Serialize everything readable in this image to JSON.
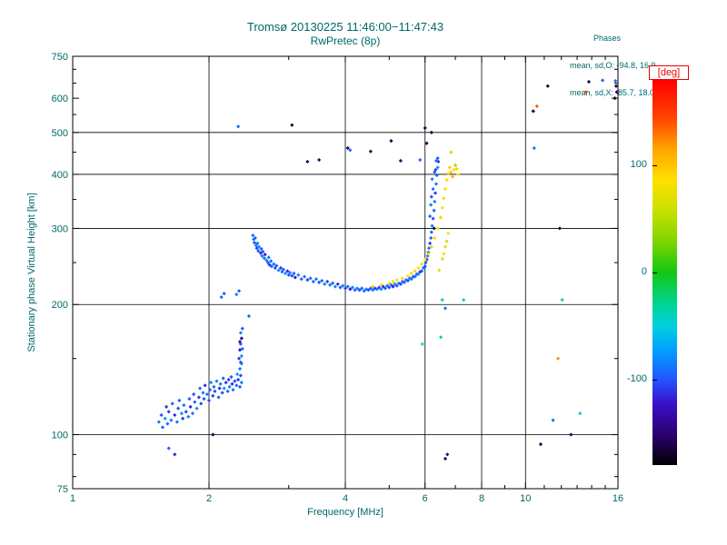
{
  "title": {
    "line1": "Tromsø 20130225 11:46:00−11:47:43",
    "line2": "RwPretec (8p)"
  },
  "stats": {
    "header": "Phases",
    "o_line": "mean, sd,O: -94.8, 16.9",
    "x_line": "mean, sd,X:  85.7, 18.0"
  },
  "colors": {
    "text": "#006868",
    "axis": "#000000",
    "deg_label": "#ee0000",
    "background": "#ffffff"
  },
  "colorbar": {
    "label": "[deg]",
    "min": -180,
    "max": 180,
    "ticks": [
      [
        "100",
        100
      ],
      [
        "0",
        0
      ],
      [
        "-100",
        -100
      ]
    ],
    "stops": [
      [
        0.0,
        "#000000"
      ],
      [
        0.08,
        "#2d0070"
      ],
      [
        0.16,
        "#3a10c8"
      ],
      [
        0.222,
        "#2255ff"
      ],
      [
        0.3,
        "#00a2ff"
      ],
      [
        0.36,
        "#00cfe0"
      ],
      [
        0.42,
        "#00d490"
      ],
      [
        0.5,
        "#12c812"
      ],
      [
        0.58,
        "#7fd400"
      ],
      [
        0.66,
        "#c8e000"
      ],
      [
        0.74,
        "#ffe000"
      ],
      [
        0.82,
        "#ffa500"
      ],
      [
        0.9,
        "#ff4500"
      ],
      [
        1.0,
        "#ff0000"
      ]
    ]
  },
  "chart_data": {
    "type": "scatter",
    "title": "Tromsø 20130225 11:46:00−11:47:43",
    "subtitle": "RwPretec (8p)",
    "xlabel": "Frequency [MHz]",
    "ylabel": "Stationary phase Virtual Height [km]",
    "xscale": "log",
    "yscale": "log",
    "xlim": [
      1,
      16
    ],
    "ylim": [
      75,
      750
    ],
    "color_value": "phase [deg]",
    "color_range": [
      -180,
      180
    ],
    "xticks": {
      "labeled": [
        [
          1,
          "1"
        ],
        [
          2,
          "2"
        ],
        [
          4,
          "4"
        ],
        [
          6,
          "6"
        ],
        [
          8,
          "8"
        ],
        [
          10,
          "10"
        ],
        [
          16,
          "16"
        ]
      ],
      "minor": [
        3,
        5,
        7,
        9,
        11,
        12,
        13,
        14,
        15
      ]
    },
    "yticks": {
      "labeled": [
        [
          75,
          "75"
        ],
        [
          100,
          "100"
        ],
        [
          200,
          "200"
        ],
        [
          300,
          "300"
        ],
        [
          400,
          "400"
        ],
        [
          500,
          "500"
        ],
        [
          600,
          "600"
        ],
        [
          750,
          "750"
        ]
      ],
      "minor": [
        80,
        90,
        150,
        250,
        350,
        450,
        550,
        650,
        700
      ]
    },
    "xgrid": [
      2,
      4,
      6,
      8,
      10
    ],
    "ygrid": [
      100,
      200,
      300,
      400,
      500
    ],
    "points": [
      [
        1.55,
        107,
        -88
      ],
      [
        1.57,
        111,
        -102
      ],
      [
        1.58,
        104,
        -95
      ],
      [
        1.6,
        109,
        -78
      ],
      [
        1.61,
        116,
        -110
      ],
      [
        1.62,
        106,
        -92
      ],
      [
        1.63,
        113,
        -105
      ],
      [
        1.65,
        108,
        -85
      ],
      [
        1.66,
        118,
        -98
      ],
      [
        1.68,
        111,
        -115
      ],
      [
        1.7,
        107,
        -88
      ],
      [
        1.71,
        115,
        -102
      ],
      [
        1.72,
        120,
        -95
      ],
      [
        1.74,
        112,
        -78
      ],
      [
        1.75,
        109,
        -110
      ],
      [
        1.76,
        117,
        -92
      ],
      [
        1.78,
        113,
        -105
      ],
      [
        1.8,
        110,
        -85
      ],
      [
        1.81,
        121,
        -98
      ],
      [
        1.82,
        116,
        -115
      ],
      [
        1.84,
        112,
        -88
      ],
      [
        1.85,
        124,
        -102
      ],
      [
        1.86,
        119,
        -95
      ],
      [
        1.88,
        115,
        -78
      ],
      [
        1.9,
        122,
        -110
      ],
      [
        1.91,
        128,
        -92
      ],
      [
        1.92,
        118,
        -105
      ],
      [
        1.94,
        125,
        -85
      ],
      [
        1.95,
        121,
        -98
      ],
      [
        1.96,
        130,
        -115
      ],
      [
        1.98,
        124,
        -88
      ],
      [
        2.0,
        120,
        -102
      ],
      [
        2.01,
        127,
        -95
      ],
      [
        2.02,
        132,
        -78
      ],
      [
        2.04,
        123,
        -110
      ],
      [
        2.05,
        129,
        -92
      ],
      [
        2.06,
        126,
        -105
      ],
      [
        2.08,
        133,
        -85
      ],
      [
        2.1,
        122,
        -98
      ],
      [
        2.11,
        128,
        -115
      ],
      [
        2.12,
        131,
        -88
      ],
      [
        2.14,
        125,
        -102
      ],
      [
        2.15,
        135,
        -95
      ],
      [
        2.16,
        128,
        -78
      ],
      [
        2.18,
        132,
        -110
      ],
      [
        2.2,
        126,
        -92
      ],
      [
        2.21,
        134,
        -105
      ],
      [
        2.22,
        129,
        -85
      ],
      [
        2.24,
        136,
        -98
      ],
      [
        2.25,
        131,
        -115
      ],
      [
        2.26,
        127,
        -88
      ],
      [
        2.28,
        133,
        -102
      ],
      [
        2.3,
        130,
        -95
      ],
      [
        2.31,
        138,
        -78
      ],
      [
        2.32,
        134,
        -110
      ],
      [
        2.34,
        129,
        -92
      ],
      [
        2.35,
        137,
        -105
      ],
      [
        2.36,
        132,
        -85
      ],
      [
        1.63,
        93,
        -96
      ],
      [
        1.68,
        90,
        -118
      ],
      [
        2.04,
        100,
        -160
      ],
      [
        2.34,
        142,
        -90
      ],
      [
        2.35,
        147,
        -105
      ],
      [
        2.36,
        152,
        -80
      ],
      [
        2.34,
        157,
        -120
      ],
      [
        2.35,
        162,
        -95
      ],
      [
        2.36,
        167,
        -150
      ],
      [
        2.35,
        172,
        -85
      ],
      [
        2.37,
        176,
        -100
      ],
      [
        2.33,
        150,
        -110
      ],
      [
        2.37,
        158,
        -92
      ],
      [
        2.36,
        146,
        -88
      ],
      [
        2.34,
        164,
        -130
      ],
      [
        2.13,
        208,
        -90
      ],
      [
        2.16,
        212,
        -100
      ],
      [
        2.3,
        211,
        -85
      ],
      [
        2.33,
        215,
        -95
      ],
      [
        2.5,
        289,
        -92
      ],
      [
        2.51,
        283,
        -88
      ],
      [
        2.52,
        278,
        -101
      ],
      [
        2.53,
        285,
        -95
      ],
      [
        2.54,
        274,
        -84
      ],
      [
        2.55,
        270,
        -108
      ],
      [
        2.56,
        277,
        -90
      ],
      [
        2.57,
        266,
        -97
      ],
      [
        2.58,
        272,
        -79
      ],
      [
        2.6,
        263,
        -112
      ],
      [
        2.61,
        269,
        -99
      ],
      [
        2.62,
        259,
        -86
      ],
      [
        2.63,
        265,
        -104
      ],
      [
        2.65,
        256,
        -93
      ],
      [
        2.66,
        261,
        -120
      ],
      [
        2.68,
        253,
        -82
      ],
      [
        2.7,
        250,
        -96
      ],
      [
        2.71,
        257,
        -89
      ],
      [
        2.72,
        247,
        -107
      ],
      [
        2.74,
        252,
        -94
      ],
      [
        2.75,
        245,
        -92
      ],
      [
        2.78,
        248,
        -88
      ],
      [
        2.8,
        243,
        -101
      ],
      [
        2.82,
        246,
        -95
      ],
      [
        2.85,
        240,
        -84
      ],
      [
        2.88,
        243,
        -108
      ],
      [
        2.9,
        238,
        -90
      ],
      [
        2.92,
        241,
        -97
      ],
      [
        2.95,
        236,
        -79
      ],
      [
        2.98,
        239,
        -112
      ],
      [
        3.0,
        234,
        -99
      ],
      [
        3.02,
        237,
        -86
      ],
      [
        3.05,
        233,
        -104
      ],
      [
        3.08,
        236,
        -93
      ],
      [
        3.1,
        231,
        -120
      ],
      [
        3.15,
        234,
        -82
      ],
      [
        3.2,
        229,
        -96
      ],
      [
        3.25,
        232,
        -89
      ],
      [
        3.3,
        228,
        -107
      ],
      [
        3.35,
        230,
        -94
      ],
      [
        3.4,
        226,
        -92
      ],
      [
        3.45,
        229,
        -88
      ],
      [
        3.5,
        225,
        -101
      ],
      [
        3.55,
        227,
        -95
      ],
      [
        3.6,
        223,
        -84
      ],
      [
        3.65,
        226,
        -108
      ],
      [
        3.7,
        222,
        -90
      ],
      [
        3.75,
        224,
        -97
      ],
      [
        3.8,
        220,
        -79
      ],
      [
        3.85,
        223,
        -112
      ],
      [
        3.9,
        219,
        -99
      ],
      [
        3.95,
        221,
        -86
      ],
      [
        4.0,
        218,
        -104
      ],
      [
        4.05,
        220,
        -93
      ],
      [
        4.1,
        217,
        -120
      ],
      [
        4.15,
        219,
        -82
      ],
      [
        4.2,
        216,
        -96
      ],
      [
        4.25,
        218,
        -89
      ],
      [
        4.3,
        216,
        -107
      ],
      [
        4.35,
        218,
        -94
      ],
      [
        4.4,
        215,
        -92
      ],
      [
        4.45,
        217,
        -88
      ],
      [
        4.5,
        216,
        -101
      ],
      [
        4.55,
        218,
        -95
      ],
      [
        4.6,
        216,
        -84
      ],
      [
        4.65,
        218,
        -108
      ],
      [
        4.7,
        217,
        -90
      ],
      [
        4.75,
        219,
        -97
      ],
      [
        4.8,
        217,
        -79
      ],
      [
        4.85,
        220,
        -112
      ],
      [
        4.9,
        218,
        -99
      ],
      [
        4.95,
        221,
        -86
      ],
      [
        5.0,
        219,
        -104
      ],
      [
        5.05,
        222,
        -93
      ],
      [
        5.1,
        220,
        -120
      ],
      [
        5.15,
        223,
        -82
      ],
      [
        5.2,
        221,
        -96
      ],
      [
        5.25,
        224,
        -89
      ],
      [
        5.3,
        223,
        -107
      ],
      [
        5.35,
        226,
        -94
      ],
      [
        5.4,
        225,
        -92
      ],
      [
        5.45,
        228,
        -88
      ],
      [
        5.5,
        227,
        -101
      ],
      [
        5.55,
        230,
        -95
      ],
      [
        5.6,
        229,
        -84
      ],
      [
        5.65,
        232,
        -108
      ],
      [
        5.7,
        232,
        -90
      ],
      [
        5.75,
        235,
        -97
      ],
      [
        5.8,
        235,
        -79
      ],
      [
        5.85,
        238,
        -112
      ],
      [
        5.9,
        239,
        -99
      ],
      [
        5.95,
        243,
        -86
      ],
      [
        6.0,
        245,
        -104
      ],
      [
        6.02,
        250,
        -93
      ],
      [
        6.05,
        254,
        -120
      ],
      [
        6.08,
        259,
        -82
      ],
      [
        6.1,
        264,
        -96
      ],
      [
        6.12,
        270,
        -89
      ],
      [
        6.15,
        277,
        -107
      ],
      [
        6.18,
        285,
        -94
      ],
      [
        6.2,
        294,
        -92
      ],
      [
        6.22,
        304,
        -88
      ],
      [
        6.25,
        316,
        -101
      ],
      [
        6.28,
        330,
        -95
      ],
      [
        6.3,
        346,
        -84
      ],
      [
        6.32,
        362,
        -108
      ],
      [
        6.35,
        380,
        -90
      ],
      [
        6.37,
        398,
        -97
      ],
      [
        6.4,
        415,
        -79
      ],
      [
        6.42,
        428,
        -112
      ],
      [
        6.15,
        320,
        -95
      ],
      [
        6.18,
        340,
        -88
      ],
      [
        6.2,
        355,
        -100
      ],
      [
        6.25,
        370,
        -92
      ],
      [
        6.22,
        390,
        -85
      ],
      [
        6.3,
        405,
        -98
      ],
      [
        6.35,
        430,
        -90
      ],
      [
        6.4,
        436,
        -95
      ],
      [
        6.28,
        300,
        -160
      ],
      [
        6.33,
        410,
        -105
      ],
      [
        4.6,
        220,
        95
      ],
      [
        4.8,
        222,
        80
      ],
      [
        5.0,
        224,
        90
      ],
      [
        5.1,
        226,
        75
      ],
      [
        5.2,
        228,
        88
      ],
      [
        5.35,
        230,
        92
      ],
      [
        5.5,
        233,
        85
      ],
      [
        5.6,
        236,
        78
      ],
      [
        5.7,
        239,
        95
      ],
      [
        5.8,
        243,
        82
      ],
      [
        5.9,
        248,
        90
      ],
      [
        6.0,
        254,
        86
      ],
      [
        6.1,
        262,
        75
      ],
      [
        6.2,
        272,
        92
      ],
      [
        6.3,
        285,
        88
      ],
      [
        6.4,
        300,
        80
      ],
      [
        6.5,
        318,
        95
      ],
      [
        6.55,
        335,
        85
      ],
      [
        6.6,
        352,
        90
      ],
      [
        6.65,
        370,
        78
      ],
      [
        6.7,
        388,
        92
      ],
      [
        6.75,
        402,
        86
      ],
      [
        6.8,
        415,
        95
      ],
      [
        6.55,
        255,
        70
      ],
      [
        6.6,
        262,
        85
      ],
      [
        6.65,
        272,
        95
      ],
      [
        6.7,
        280,
        60
      ],
      [
        6.75,
        292,
        88
      ],
      [
        6.85,
        405,
        95
      ],
      [
        6.95,
        410,
        88
      ],
      [
        7.05,
        412,
        92
      ],
      [
        7.1,
        400,
        85
      ],
      [
        7.0,
        420,
        45
      ],
      [
        6.9,
        395,
        110
      ],
      [
        6.45,
        240,
        72
      ],
      [
        3.05,
        520,
        -165
      ],
      [
        3.3,
        428,
        -155
      ],
      [
        3.5,
        432,
        -150
      ],
      [
        4.05,
        460,
        -160
      ],
      [
        4.1,
        455,
        -95
      ],
      [
        4.55,
        452,
        -165
      ],
      [
        5.05,
        478,
        -160
      ],
      [
        5.3,
        430,
        -150
      ],
      [
        5.85,
        432,
        -95
      ],
      [
        6.0,
        512,
        -165
      ],
      [
        6.05,
        472,
        -160
      ],
      [
        2.32,
        516,
        -95
      ],
      [
        6.2,
        500,
        -170
      ],
      [
        10.4,
        560,
        -165
      ],
      [
        11.2,
        640,
        -160
      ],
      [
        15.8,
        658,
        -95
      ],
      [
        15.85,
        640,
        -160
      ],
      [
        15.9,
        620,
        -150
      ],
      [
        15.75,
        600,
        -170
      ],
      [
        13.8,
        655,
        -160
      ],
      [
        14.8,
        660,
        -95
      ],
      [
        6.55,
        205,
        -40
      ],
      [
        6.65,
        196,
        -90
      ],
      [
        5.92,
        162,
        -45
      ],
      [
        6.5,
        168,
        -35
      ],
      [
        7.3,
        205,
        -50
      ],
      [
        12.05,
        205,
        -40
      ],
      [
        10.8,
        95,
        -160
      ],
      [
        11.5,
        108,
        -90
      ],
      [
        12.6,
        100,
        -155
      ],
      [
        13.2,
        112,
        -45
      ],
      [
        6.65,
        88,
        -165
      ],
      [
        6.72,
        90,
        -150
      ],
      [
        10.6,
        575,
        140
      ],
      [
        13.6,
        620,
        150
      ],
      [
        11.8,
        150,
        120
      ],
      [
        6.85,
        450,
        60
      ],
      [
        10.45,
        460,
        -90
      ],
      [
        11.9,
        300,
        -160
      ],
      [
        2.45,
        188,
        -95
      ]
    ]
  }
}
